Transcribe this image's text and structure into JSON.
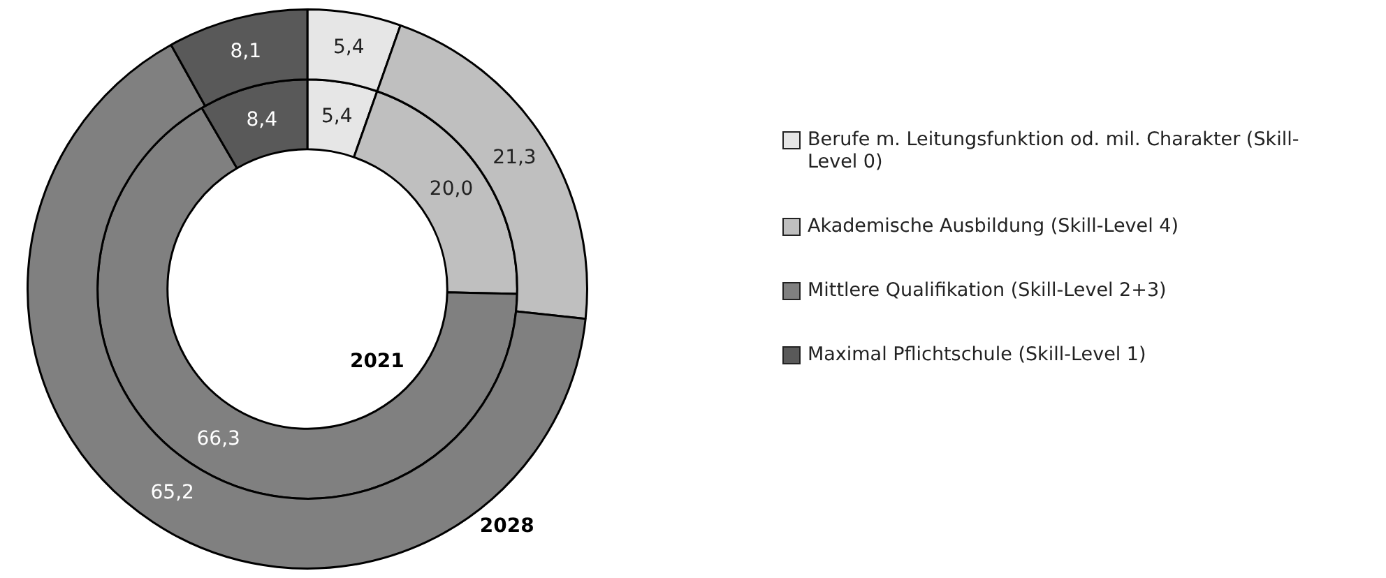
{
  "chart_data": {
    "type": "donut",
    "categories": [
      "Berufe m. Leitungsfunktion od. mil. Charakter (Skill-Level 0)",
      "Akademische Ausbildung (Skill-Level 4)",
      "Mittlere Qualifikation (Skill-Level 2+3)",
      "Maximal Pflichtschule (Skill-Level 1)"
    ],
    "colors": [
      "#e6e6e6",
      "#bfbfbf",
      "#808080",
      "#595959"
    ],
    "series": [
      {
        "name": "2028",
        "values": [
          5.4,
          21.3,
          65.2,
          8.1
        ],
        "value_labels": [
          "5,4",
          "21,3",
          "65,2",
          "8,1"
        ]
      },
      {
        "name": "2021",
        "values": [
          5.4,
          20.0,
          66.3,
          8.4
        ],
        "value_labels": [
          "5,4",
          "20,0",
          "66,3",
          "8,4"
        ]
      }
    ],
    "legend": "right"
  }
}
